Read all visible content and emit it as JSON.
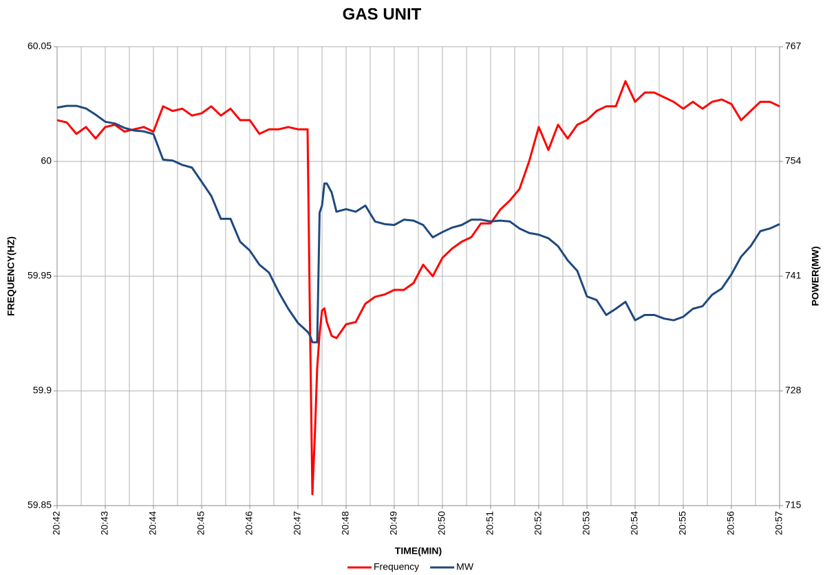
{
  "chart_data": {
    "type": "line",
    "title": "GAS UNIT",
    "xlabel": "TIME(MIN)",
    "ylabel": "FREQUENCY(HZ)",
    "y2label": "POWER(MW)",
    "x": [
      0,
      0.2,
      0.4,
      0.6,
      0.8,
      1.0,
      1.2,
      1.4,
      1.6,
      1.8,
      2.0,
      2.2,
      2.4,
      2.6,
      2.8,
      3.0,
      3.2,
      3.4,
      3.6,
      3.8,
      4.0,
      4.2,
      4.4,
      4.6,
      4.8,
      5.0,
      5.2,
      5.25,
      5.3,
      5.35,
      5.4,
      5.45,
      5.5,
      5.55,
      5.6,
      5.7,
      5.8,
      6.0,
      6.2,
      6.4,
      6.6,
      6.8,
      7.0,
      7.2,
      7.4,
      7.6,
      7.8,
      8.0,
      8.2,
      8.4,
      8.6,
      8.8,
      9.0,
      9.2,
      9.4,
      9.6,
      9.8,
      10.0,
      10.2,
      10.4,
      10.6,
      10.8,
      11.0,
      11.2,
      11.4,
      11.6,
      11.8,
      12.0,
      12.2,
      12.4,
      12.6,
      12.8,
      13.0,
      13.2,
      13.4,
      13.6,
      13.8,
      14.0,
      14.2,
      14.4,
      14.6,
      14.8,
      15.0
    ],
    "series": [
      {
        "name": "Frequency",
        "color": "#ff0000",
        "axis": "y",
        "values": [
          60.018,
          60.017,
          60.012,
          60.015,
          60.01,
          60.015,
          60.016,
          60.013,
          60.014,
          60.015,
          60.013,
          60.024,
          60.022,
          60.023,
          60.02,
          60.021,
          60.024,
          60.02,
          60.023,
          60.018,
          60.018,
          60.012,
          60.014,
          60.014,
          60.015,
          60.014,
          60.014,
          59.93,
          59.855,
          59.88,
          59.91,
          59.925,
          59.935,
          59.936,
          59.93,
          59.924,
          59.923,
          59.929,
          59.93,
          59.938,
          59.941,
          59.942,
          59.944,
          59.944,
          59.947,
          59.955,
          59.95,
          59.958,
          59.962,
          59.965,
          59.967,
          59.973,
          59.973,
          59.979,
          59.983,
          59.988,
          60.0,
          60.015,
          60.005,
          60.016,
          60.01,
          60.016,
          60.018,
          60.022,
          60.024,
          60.024,
          60.035,
          60.026,
          60.03,
          60.03,
          60.028,
          60.026,
          60.023,
          60.026,
          60.023,
          60.026,
          60.027,
          60.025,
          60.018,
          60.022,
          60.026,
          60.026,
          60.024
        ]
      },
      {
        "name": "MW",
        "color": "#1f497d",
        "axis": "y2",
        "values": [
          760.1,
          760.3,
          760.3,
          760.0,
          759.3,
          758.5,
          758.3,
          757.8,
          757.5,
          757.4,
          757.1,
          754.2,
          754.1,
          753.6,
          753.3,
          751.7,
          750.1,
          747.5,
          747.5,
          744.9,
          743.9,
          742.3,
          741.4,
          739.2,
          737.3,
          735.7,
          734.7,
          734.3,
          733.5,
          733.5,
          733.5,
          748.2,
          749,
          751.5,
          751.5,
          750.5,
          748.3,
          748.6,
          748.3,
          749,
          747.2,
          746.9,
          746.8,
          747.4,
          747.3,
          746.8,
          745.4,
          746,
          746.5,
          746.8,
          747.4,
          747.4,
          747.2,
          747.3,
          747.2,
          746.4,
          745.9,
          745.7,
          745.3,
          744.4,
          742.8,
          741.6,
          738.7,
          738.3,
          736.6,
          737.3,
          738.1,
          736,
          736.6,
          736.6,
          736.2,
          736,
          736.4,
          737.3,
          737.6,
          738.9,
          739.6,
          741.2,
          743.2,
          744.4,
          746.1,
          746.4,
          746.9
        ]
      }
    ],
    "xlim": [
      0,
      15
    ],
    "xticks": [
      {
        "value": 0,
        "label": "20:42"
      },
      {
        "value": 1,
        "label": "20:43"
      },
      {
        "value": 2,
        "label": "20:44"
      },
      {
        "value": 3,
        "label": "20:45"
      },
      {
        "value": 4,
        "label": "20:46"
      },
      {
        "value": 5,
        "label": "20:47"
      },
      {
        "value": 6,
        "label": "20:48"
      },
      {
        "value": 7,
        "label": "20:49"
      },
      {
        "value": 8,
        "label": "20:50"
      },
      {
        "value": 9,
        "label": "20:51"
      },
      {
        "value": 10,
        "label": "20:52"
      },
      {
        "value": 11,
        "label": "20:53"
      },
      {
        "value": 12,
        "label": "20:54"
      },
      {
        "value": 13,
        "label": "20:55"
      },
      {
        "value": 14,
        "label": "20:56"
      },
      {
        "value": 15,
        "label": "20:57"
      }
    ],
    "x_minor_gridlines": [
      0.5,
      1.5,
      2.5,
      3.5,
      4.5,
      5.5,
      6.5,
      7.5,
      8.5,
      9.5,
      10.5,
      11.5,
      12.5,
      13.5,
      14.5
    ],
    "ylim": [
      59.85,
      60.05
    ],
    "yticks": [
      59.85,
      59.9,
      59.95,
      60,
      60.05
    ],
    "y2lim": [
      715,
      767
    ],
    "y2ticks": [
      715,
      728,
      741,
      754,
      767
    ],
    "grid": true,
    "legend": "bottom"
  }
}
